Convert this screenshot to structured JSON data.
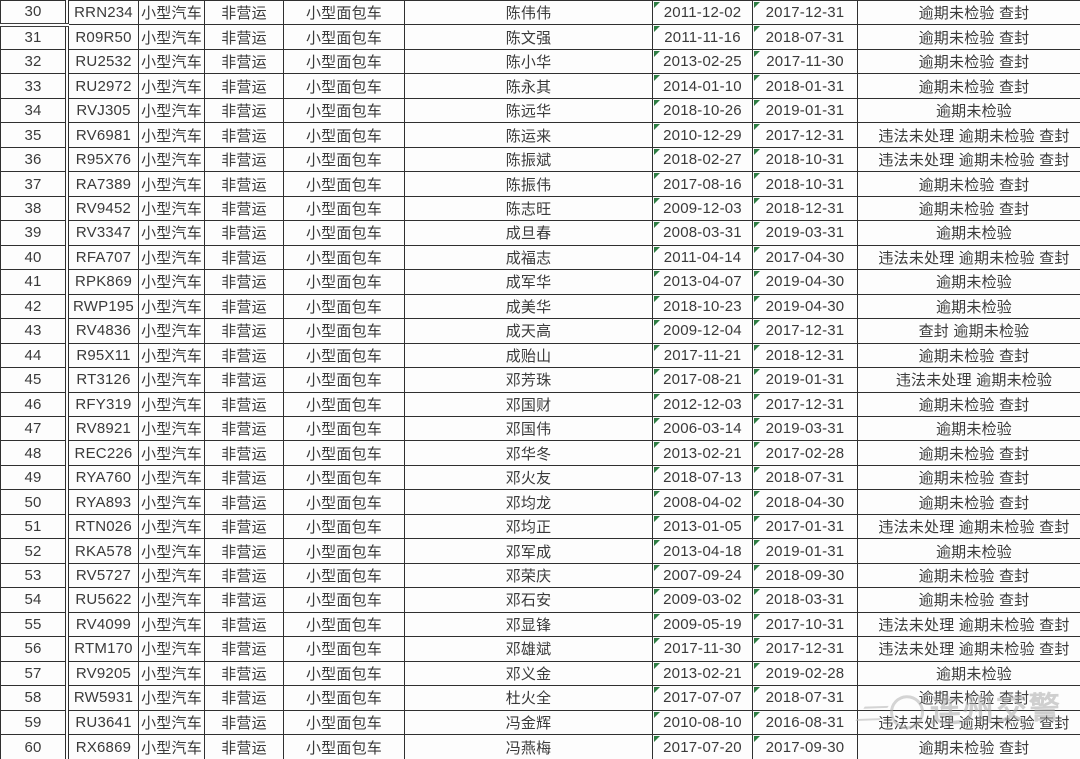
{
  "watermark": {
    "text": "连州交警"
  },
  "colors": {
    "border": "#303030",
    "text": "#3a3a3a",
    "flag_green": "#2e7d43",
    "watermark_gray": "#ababab"
  },
  "table": {
    "rows": [
      {
        "num": "30",
        "plate": "RRN234",
        "vehicle_type": "小型汽车",
        "use_nature": "非营运",
        "model": "小型面包车",
        "owner": "陈伟伟",
        "date1": "2011-12-02",
        "date2": "2017-12-31",
        "status": "逾期未检验 查封"
      },
      {
        "num": "31",
        "plate": "R09R50",
        "vehicle_type": "小型汽车",
        "use_nature": "非营运",
        "model": "小型面包车",
        "owner": "陈文强",
        "date1": "2011-11-16",
        "date2": "2018-07-31",
        "status": "逾期未检验 查封"
      },
      {
        "num": "32",
        "plate": "RU2532",
        "vehicle_type": "小型汽车",
        "use_nature": "非营运",
        "model": "小型面包车",
        "owner": "陈小华",
        "date1": "2013-02-25",
        "date2": "2017-11-30",
        "status": "逾期未检验 查封"
      },
      {
        "num": "33",
        "plate": "RU2972",
        "vehicle_type": "小型汽车",
        "use_nature": "非营运",
        "model": "小型面包车",
        "owner": "陈永其",
        "date1": "2014-01-10",
        "date2": "2018-01-31",
        "status": "逾期未检验 查封"
      },
      {
        "num": "34",
        "plate": "RVJ305",
        "vehicle_type": "小型汽车",
        "use_nature": "非营运",
        "model": "小型面包车",
        "owner": "陈远华",
        "date1": "2018-10-26",
        "date2": "2019-01-31",
        "status": "逾期未检验"
      },
      {
        "num": "35",
        "plate": "RV6981",
        "vehicle_type": "小型汽车",
        "use_nature": "非营运",
        "model": "小型面包车",
        "owner": "陈运来",
        "date1": "2010-12-29",
        "date2": "2017-12-31",
        "status": "违法未处理 逾期未检验 查封"
      },
      {
        "num": "36",
        "plate": "R95X76",
        "vehicle_type": "小型汽车",
        "use_nature": "非营运",
        "model": "小型面包车",
        "owner": "陈振斌",
        "date1": "2018-02-27",
        "date2": "2018-10-31",
        "status": "违法未处理 逾期未检验 查封"
      },
      {
        "num": "37",
        "plate": "RA7389",
        "vehicle_type": "小型汽车",
        "use_nature": "非营运",
        "model": "小型面包车",
        "owner": "陈振伟",
        "date1": "2017-08-16",
        "date2": "2018-10-31",
        "status": "逾期未检验 查封"
      },
      {
        "num": "38",
        "plate": "RV9452",
        "vehicle_type": "小型汽车",
        "use_nature": "非营运",
        "model": "小型面包车",
        "owner": "陈志旺",
        "date1": "2009-12-03",
        "date2": "2018-12-31",
        "status": "逾期未检验 查封"
      },
      {
        "num": "39",
        "plate": "RV3347",
        "vehicle_type": "小型汽车",
        "use_nature": "非营运",
        "model": "小型面包车",
        "owner": "成旦春",
        "date1": "2008-03-31",
        "date2": "2019-03-31",
        "status": "逾期未检验"
      },
      {
        "num": "40",
        "plate": "RFA707",
        "vehicle_type": "小型汽车",
        "use_nature": "非营运",
        "model": "小型面包车",
        "owner": "成福志",
        "date1": "2011-04-14",
        "date2": "2017-04-30",
        "status": "违法未处理 逾期未检验 查封"
      },
      {
        "num": "41",
        "plate": "RPK869",
        "vehicle_type": "小型汽车",
        "use_nature": "非营运",
        "model": "小型面包车",
        "owner": "成军华",
        "date1": "2013-04-07",
        "date2": "2019-04-30",
        "status": "逾期未检验"
      },
      {
        "num": "42",
        "plate": "RWP195",
        "vehicle_type": "小型汽车",
        "use_nature": "非营运",
        "model": "小型面包车",
        "owner": "成美华",
        "date1": "2018-10-23",
        "date2": "2019-04-30",
        "status": "逾期未检验"
      },
      {
        "num": "43",
        "plate": "RV4836",
        "vehicle_type": "小型汽车",
        "use_nature": "非营运",
        "model": "小型面包车",
        "owner": "成天高",
        "date1": "2009-12-04",
        "date2": "2017-12-31",
        "status": "查封 逾期未检验"
      },
      {
        "num": "44",
        "plate": "R95X11",
        "vehicle_type": "小型汽车",
        "use_nature": "非营运",
        "model": "小型面包车",
        "owner": "成贻山",
        "date1": "2017-11-21",
        "date2": "2018-12-31",
        "status": "逾期未检验 查封"
      },
      {
        "num": "45",
        "plate": "RT3126",
        "vehicle_type": "小型汽车",
        "use_nature": "非营运",
        "model": "小型面包车",
        "owner": "邓芳珠",
        "date1": "2017-08-21",
        "date2": "2019-01-31",
        "status": "违法未处理 逾期未检验"
      },
      {
        "num": "46",
        "plate": "RFY319",
        "vehicle_type": "小型汽车",
        "use_nature": "非营运",
        "model": "小型面包车",
        "owner": "邓国财",
        "date1": "2012-12-03",
        "date2": "2017-12-31",
        "status": "逾期未检验 查封"
      },
      {
        "num": "47",
        "plate": "RV8921",
        "vehicle_type": "小型汽车",
        "use_nature": "非营运",
        "model": "小型面包车",
        "owner": "邓国伟",
        "date1": "2006-03-14",
        "date2": "2019-03-31",
        "status": "逾期未检验"
      },
      {
        "num": "48",
        "plate": "REC226",
        "vehicle_type": "小型汽车",
        "use_nature": "非营运",
        "model": "小型面包车",
        "owner": "邓华冬",
        "date1": "2013-02-21",
        "date2": "2017-02-28",
        "status": "逾期未检验 查封"
      },
      {
        "num": "49",
        "plate": "RYA760",
        "vehicle_type": "小型汽车",
        "use_nature": "非营运",
        "model": "小型面包车",
        "owner": "邓火友",
        "date1": "2018-07-13",
        "date2": "2018-07-31",
        "status": "逾期未检验 查封"
      },
      {
        "num": "50",
        "plate": "RYA893",
        "vehicle_type": "小型汽车",
        "use_nature": "非营运",
        "model": "小型面包车",
        "owner": "邓均龙",
        "date1": "2008-04-02",
        "date2": "2018-04-30",
        "status": "逾期未检验 查封"
      },
      {
        "num": "51",
        "plate": "RTN026",
        "vehicle_type": "小型汽车",
        "use_nature": "非营运",
        "model": "小型面包车",
        "owner": "邓均正",
        "date1": "2013-01-05",
        "date2": "2017-01-31",
        "status": "违法未处理 逾期未检验 查封"
      },
      {
        "num": "52",
        "plate": "RKA578",
        "vehicle_type": "小型汽车",
        "use_nature": "非营运",
        "model": "小型面包车",
        "owner": "邓军成",
        "date1": "2013-04-18",
        "date2": "2019-01-31",
        "status": "逾期未检验"
      },
      {
        "num": "53",
        "plate": "RV5727",
        "vehicle_type": "小型汽车",
        "use_nature": "非营运",
        "model": "小型面包车",
        "owner": "邓荣庆",
        "date1": "2007-09-24",
        "date2": "2018-09-30",
        "status": "逾期未检验 查封"
      },
      {
        "num": "54",
        "plate": "RU5622",
        "vehicle_type": "小型汽车",
        "use_nature": "非营运",
        "model": "小型面包车",
        "owner": "邓石安",
        "date1": "2009-03-02",
        "date2": "2018-03-31",
        "status": "逾期未检验 查封"
      },
      {
        "num": "55",
        "plate": "RV4099",
        "vehicle_type": "小型汽车",
        "use_nature": "非营运",
        "model": "小型面包车",
        "owner": "邓显锋",
        "date1": "2009-05-19",
        "date2": "2017-10-31",
        "status": "违法未处理 逾期未检验 查封"
      },
      {
        "num": "56",
        "plate": "RTM170",
        "vehicle_type": "小型汽车",
        "use_nature": "非营运",
        "model": "小型面包车",
        "owner": "邓雄斌",
        "date1": "2017-11-30",
        "date2": "2017-12-31",
        "status": "违法未处理 逾期未检验 查封"
      },
      {
        "num": "57",
        "plate": "RV9205",
        "vehicle_type": "小型汽车",
        "use_nature": "非营运",
        "model": "小型面包车",
        "owner": "邓义金",
        "date1": "2013-02-21",
        "date2": "2019-02-28",
        "status": "逾期未检验"
      },
      {
        "num": "58",
        "plate": "RW5931",
        "vehicle_type": "小型汽车",
        "use_nature": "非营运",
        "model": "小型面包车",
        "owner": "杜火全",
        "date1": "2017-07-07",
        "date2": "2018-07-31",
        "status": "逾期未检验 查封"
      },
      {
        "num": "59",
        "plate": "RU3641",
        "vehicle_type": "小型汽车",
        "use_nature": "非营运",
        "model": "小型面包车",
        "owner": "冯金辉",
        "date1": "2010-08-10",
        "date2": "2016-08-31",
        "status": "违法未处理 逾期未检验 查封"
      },
      {
        "num": "60",
        "plate": "RX6869",
        "vehicle_type": "小型汽车",
        "use_nature": "非营运",
        "model": "小型面包车",
        "owner": "冯燕梅",
        "date1": "2017-07-20",
        "date2": "2017-09-30",
        "status": "逾期未检验 查封"
      }
    ]
  }
}
